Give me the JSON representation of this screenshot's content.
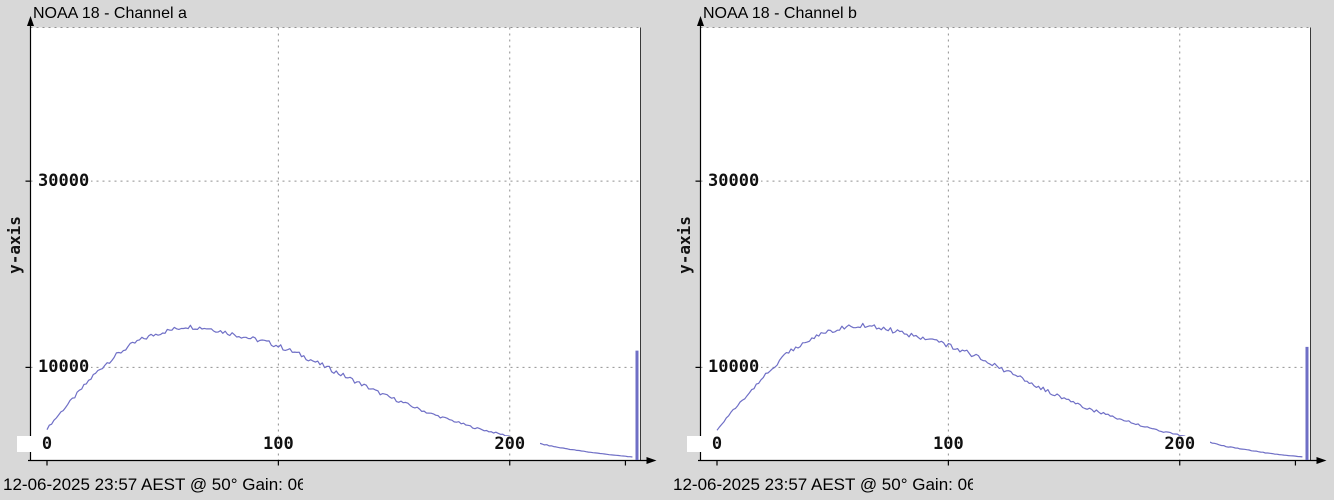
{
  "colors": {
    "background": "#d8d8d8",
    "plot_bg": "#ffffff",
    "curve": "#6f6fc6",
    "grid": "#909090",
    "axis": "#000000",
    "text": "#000000"
  },
  "panels": [
    {
      "title": "NOAA 18 - Channel a",
      "y_axis_label": "y-axis",
      "status_text": "12-06-2025 23:57 AEST @ 50° Gain: 0",
      "status_truncated_char": "6"
    },
    {
      "title": "NOAA 18 - Channel b",
      "y_axis_label": "y-axis",
      "status_text": "12-06-2025 23:57 AEST @ 50° Gain: 0",
      "status_truncated_char": "6"
    }
  ],
  "chart_data": [
    {
      "type": "line",
      "title": "NOAA 18 - Channel a",
      "xlabel": "",
      "ylabel": "y-axis",
      "xlim": [
        0,
        255
      ],
      "ylim": [
        0,
        46500
      ],
      "x_ticks": [
        0,
        100,
        200
      ],
      "x_minor_ticks": [
        250
      ],
      "x_grid": [
        100,
        200
      ],
      "y_ticks": [
        10000,
        30000
      ],
      "grid": "dashed",
      "legend": "none",
      "series": [
        {
          "name": "histogram",
          "x": [
            0,
            5,
            10,
            15,
            20,
            25,
            30,
            35,
            40,
            45,
            50,
            55,
            60,
            65,
            70,
            75,
            80,
            85,
            90,
            95,
            100,
            105,
            110,
            115,
            120,
            125,
            130,
            135,
            140,
            145,
            150,
            155,
            160,
            165,
            170,
            175,
            180,
            185,
            190,
            195,
            200,
            205,
            210,
            215,
            220,
            225,
            230,
            235,
            240,
            245,
            250,
            253
          ],
          "values": [
            3400,
            4900,
            6300,
            7700,
            9100,
            10300,
            11300,
            12200,
            12900,
            13400,
            13800,
            14100,
            14400,
            14300,
            14200,
            13900,
            13600,
            13300,
            13000,
            12700,
            12300,
            11800,
            11300,
            10700,
            10100,
            9500,
            8900,
            8300,
            7700,
            7100,
            6600,
            6100,
            5600,
            5100,
            4700,
            4300,
            3900,
            3500,
            3200,
            2900,
            2600,
            2300,
            2000,
            1700,
            1450,
            1250,
            1050,
            880,
            720,
            580,
            450,
            380
          ]
        }
      ],
      "saturation_spike": {
        "x": 255,
        "value": 11800
      }
    },
    {
      "type": "line",
      "title": "NOAA 18 - Channel b",
      "xlabel": "",
      "ylabel": "y-axis",
      "xlim": [
        0,
        255
      ],
      "ylim": [
        0,
        46500
      ],
      "x_ticks": [
        0,
        100,
        200
      ],
      "x_minor_ticks": [
        250
      ],
      "x_grid": [
        100,
        200
      ],
      "y_ticks": [
        10000,
        30000
      ],
      "grid": "dashed",
      "legend": "none",
      "series": [
        {
          "name": "histogram",
          "x": [
            0,
            5,
            10,
            15,
            20,
            25,
            30,
            35,
            40,
            45,
            50,
            55,
            60,
            65,
            70,
            75,
            80,
            85,
            90,
            95,
            100,
            105,
            110,
            115,
            120,
            125,
            130,
            135,
            140,
            145,
            150,
            155,
            160,
            165,
            170,
            175,
            180,
            185,
            190,
            195,
            200,
            205,
            210,
            215,
            220,
            225,
            230,
            235,
            240,
            245,
            250,
            253
          ],
          "values": [
            3300,
            4800,
            6200,
            7600,
            9000,
            10200,
            11400,
            12300,
            13000,
            13600,
            14000,
            14300,
            14500,
            14500,
            14300,
            14000,
            13700,
            13400,
            13100,
            12800,
            12400,
            11900,
            11400,
            10800,
            10200,
            9600,
            9000,
            8400,
            7800,
            7200,
            6600,
            6100,
            5600,
            5200,
            4800,
            4400,
            4000,
            3600,
            3300,
            3000,
            2700,
            2400,
            2100,
            1800,
            1500,
            1300,
            1100,
            900,
            730,
            590,
            460,
            390
          ]
        }
      ],
      "saturation_spike": {
        "x": 255,
        "value": 12200
      }
    }
  ]
}
